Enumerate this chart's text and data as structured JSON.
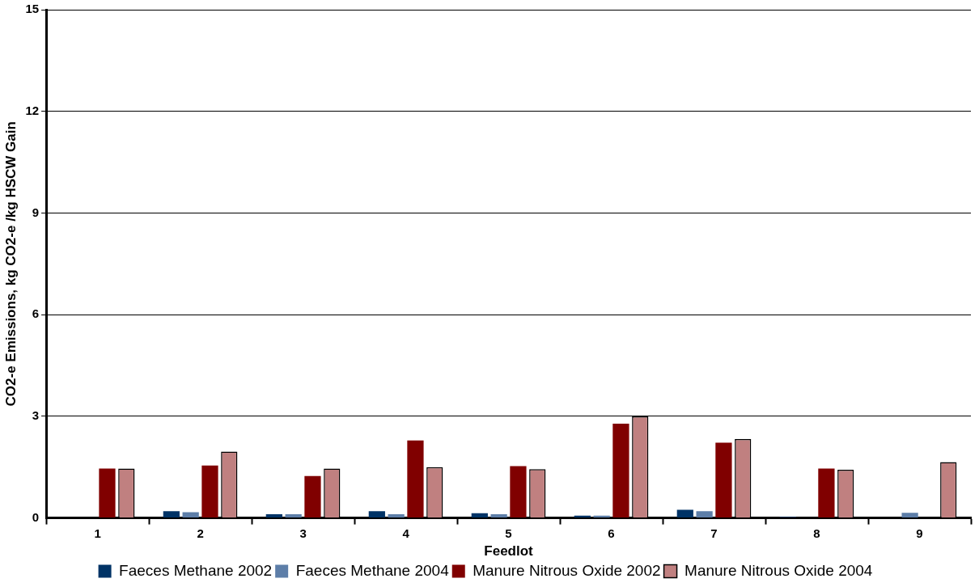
{
  "chart_data": {
    "type": "bar",
    "xlabel": "Feedlot",
    "ylabel": "CO2-e Emissions, kg CO2-e /kg HSCW Gain",
    "categories": [
      "1",
      "2",
      "3",
      "4",
      "5",
      "6",
      "7",
      "8",
      "9"
    ],
    "series": [
      {
        "name": "Faeces Methane 2002",
        "color": "#003366",
        "values": [
          null,
          0.2,
          0.11,
          0.2,
          0.14,
          0.07,
          0.24,
          0.03,
          0
        ]
      },
      {
        "name": "Faeces Methane 2004",
        "color": "#5d7ea8",
        "values": [
          null,
          0.17,
          0.11,
          0.11,
          0.11,
          0.07,
          0.2,
          null,
          0.15
        ]
      },
      {
        "name": "Manure Nitrous Oxide 2002",
        "color": "#800000",
        "values": [
          1.46,
          1.55,
          1.24,
          2.29,
          1.53,
          2.78,
          2.22,
          1.46,
          0
        ]
      },
      {
        "name": "Manure Nitrous Oxide 2004",
        "color": "#c08080",
        "values": [
          1.46,
          1.96,
          1.46,
          1.5,
          1.44,
          3.0,
          2.33,
          1.42,
          1.65
        ]
      }
    ],
    "ylim": [
      0,
      15
    ],
    "yticks": [
      0,
      3,
      6,
      9,
      12,
      15
    ],
    "grid": "y",
    "legend": "bottom"
  }
}
